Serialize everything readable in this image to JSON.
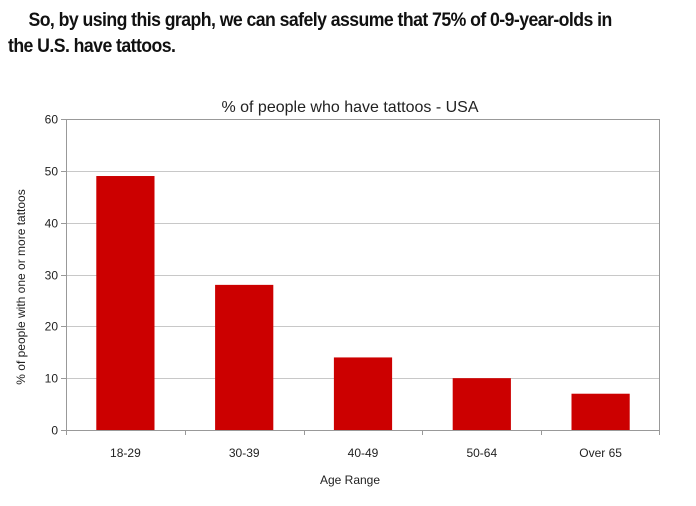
{
  "caption": "So, by using this graph, we can safely assume that 75% of 0-9-year-olds in the U.S. have tattoos.",
  "colors": {
    "bar": "#cc0000",
    "grid": "#c8c8c8",
    "axis": "#999999"
  },
  "chart_data": {
    "type": "bar",
    "title": "% of people who have tattoos - USA",
    "xlabel": "Age Range",
    "ylabel": "% of people with one or more tattoos",
    "categories": [
      "18-29",
      "30-39",
      "40-49",
      "50-64",
      "Over 65"
    ],
    "values": [
      49,
      28,
      14,
      10,
      7
    ],
    "ylim": [
      0,
      60
    ],
    "yticks": [
      0,
      10,
      20,
      30,
      40,
      50,
      60
    ],
    "grid": true,
    "legend": "none"
  }
}
